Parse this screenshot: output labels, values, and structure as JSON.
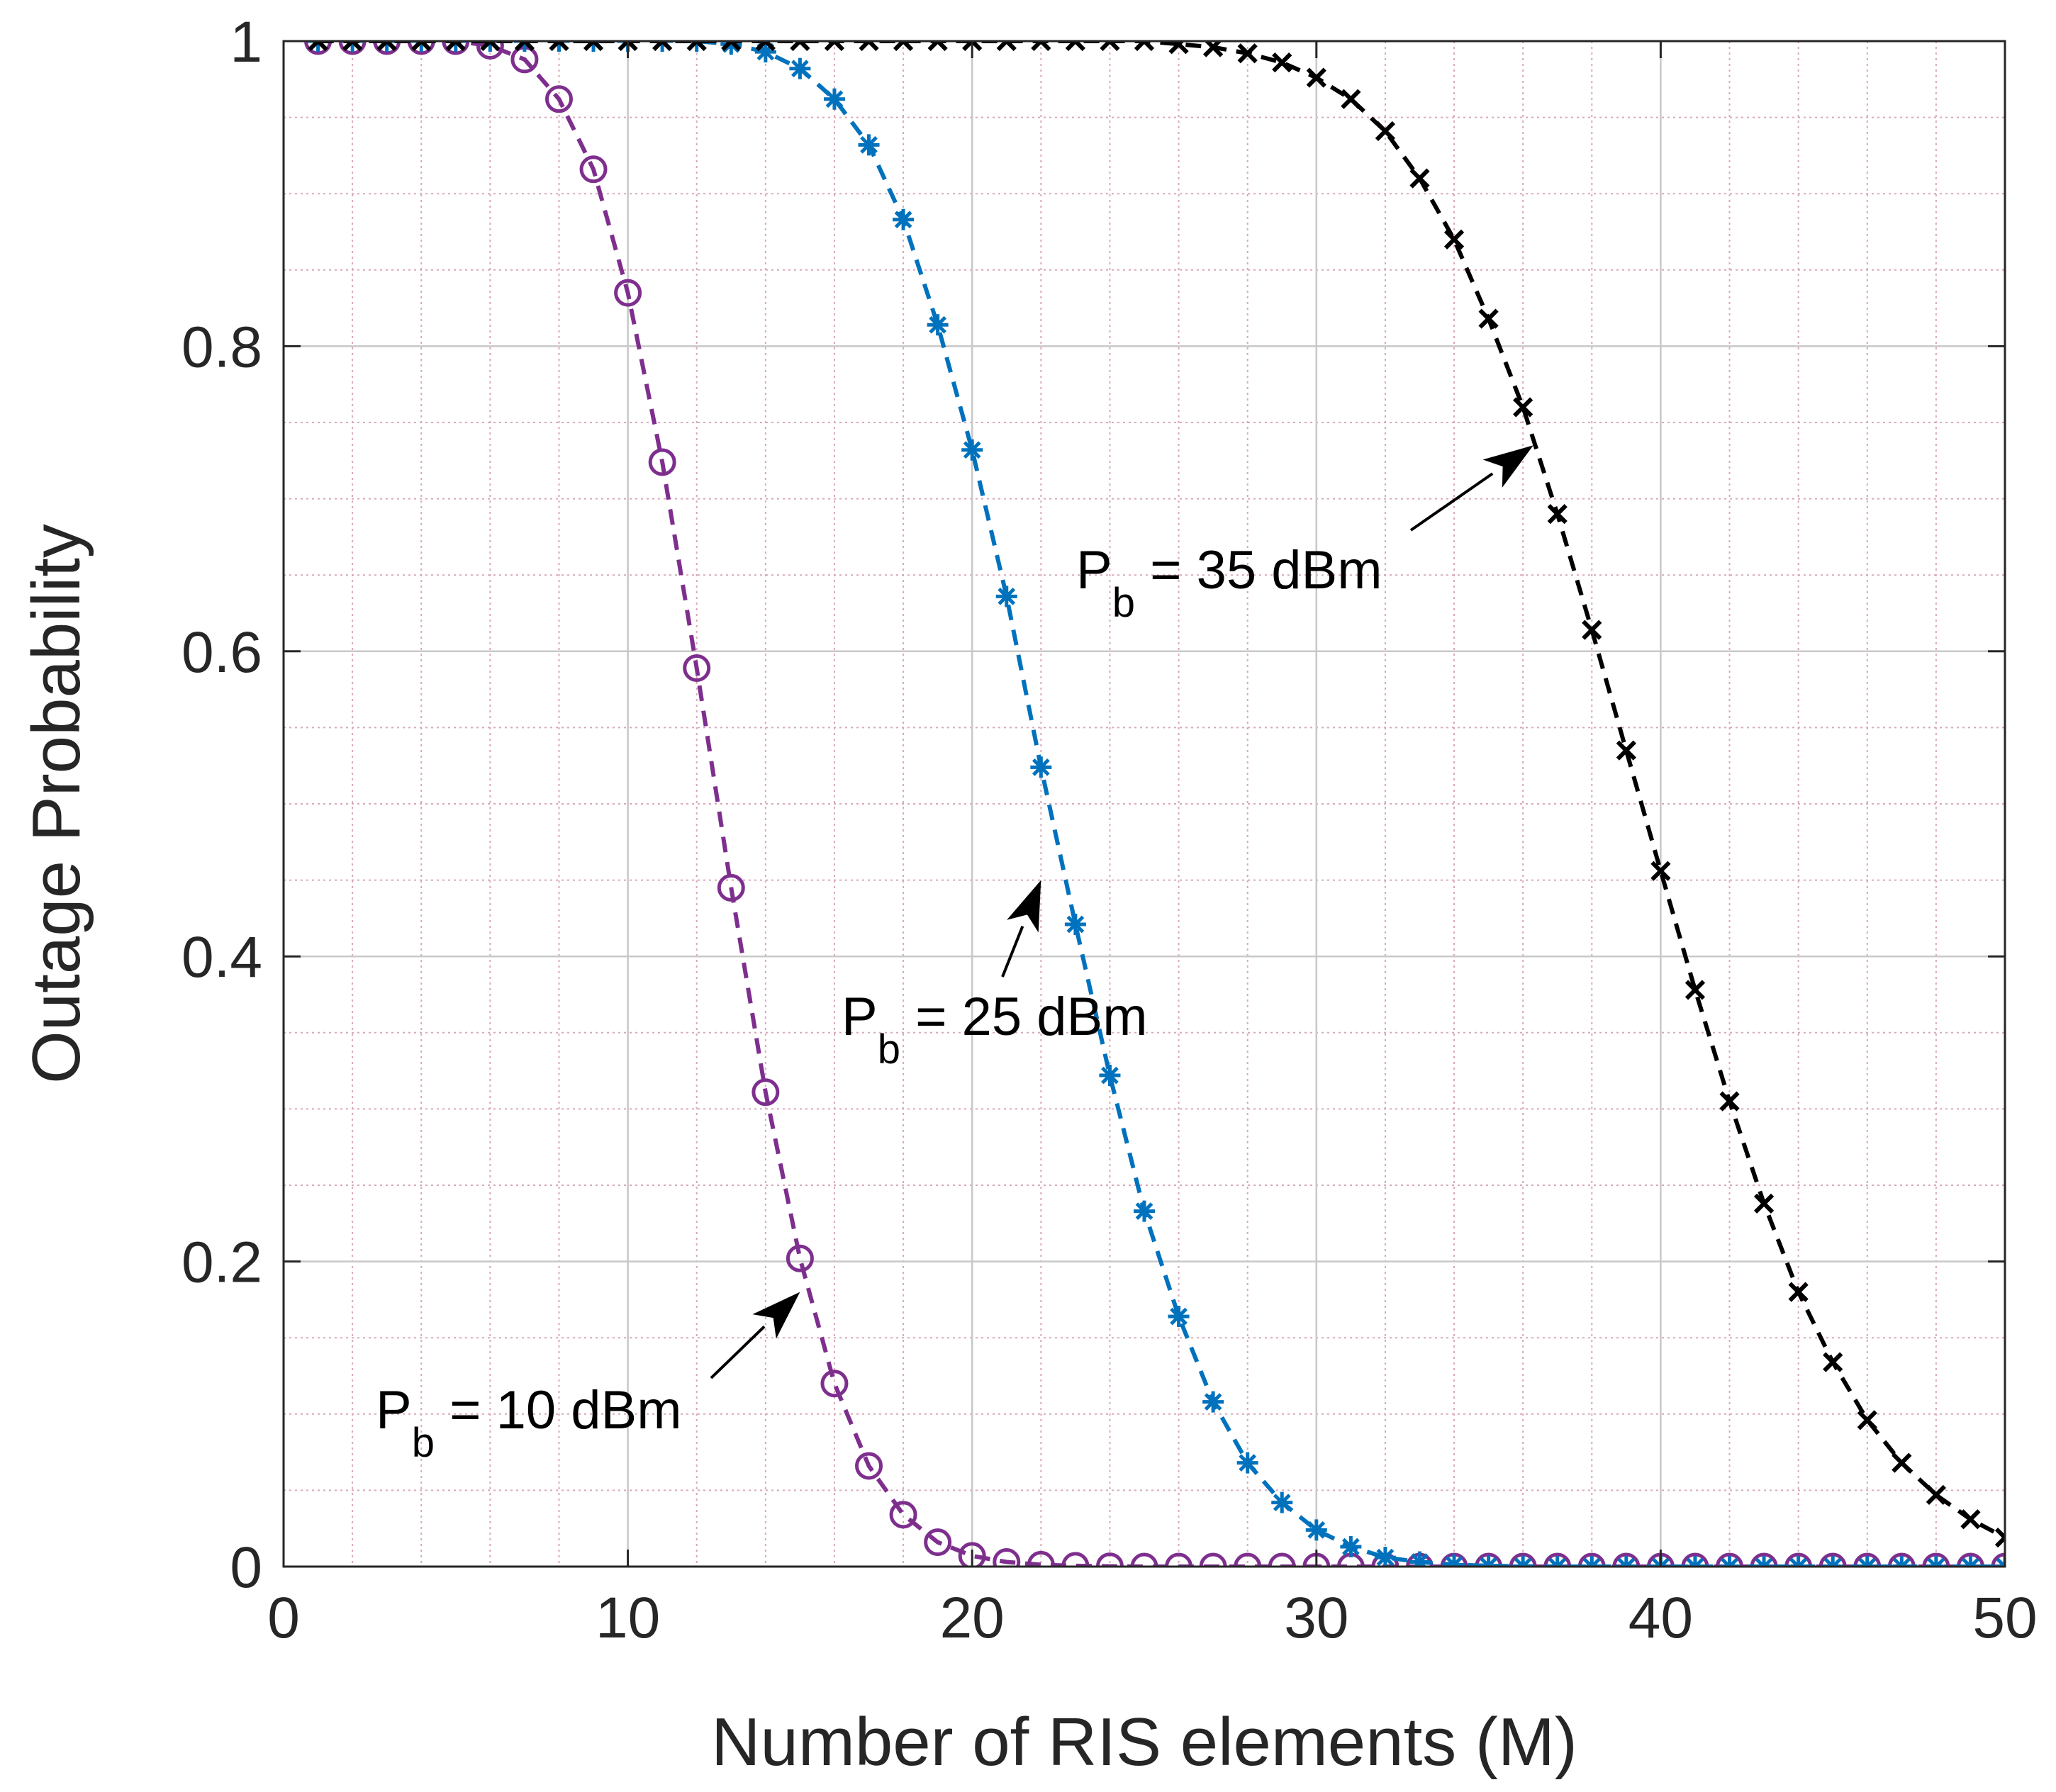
{
  "chart_data": {
    "type": "line",
    "title": "",
    "xlabel": "Number of RIS elements (M)",
    "ylabel": "Outage Probability",
    "xlim": [
      0,
      50
    ],
    "ylim": [
      0,
      1
    ],
    "xticks": [
      0,
      10,
      20,
      30,
      40,
      50
    ],
    "yticks": [
      0,
      0.2,
      0.4,
      0.6,
      0.8,
      1
    ],
    "xtick_labels": [
      "0",
      "10",
      "20",
      "30",
      "40",
      "50"
    ],
    "ytick_labels": [
      "0",
      "0.2",
      "0.4",
      "0.6",
      "0.8",
      "1"
    ],
    "grid": "major and minor",
    "x": [
      1,
      2,
      3,
      4,
      5,
      6,
      7,
      8,
      9,
      10,
      11,
      12,
      13,
      14,
      15,
      16,
      17,
      18,
      19,
      20,
      21,
      22,
      23,
      24,
      25,
      26,
      27,
      28,
      29,
      30,
      31,
      32,
      33,
      34,
      35,
      36,
      37,
      38,
      39,
      40,
      41,
      42,
      43,
      44,
      45,
      46,
      47,
      48,
      49,
      50
    ],
    "series": [
      {
        "name": "Pb = 10 dBm",
        "color": "#7E2F8E",
        "marker": "circle",
        "values": [
          1,
          1,
          1,
          1,
          1,
          0.997,
          0.988,
          0.962,
          0.916,
          0.835,
          0.724,
          0.589,
          0.445,
          0.311,
          0.202,
          0.12,
          0.066,
          0.034,
          0.016,
          0.007,
          0.003,
          0.0012,
          0.0005,
          0.0002,
          0,
          0,
          0,
          0,
          0,
          0,
          0,
          0,
          0,
          0,
          0,
          0,
          0,
          0,
          0,
          0,
          0,
          0,
          0,
          0,
          0,
          0,
          0,
          0,
          0,
          0
        ]
      },
      {
        "name": "Pb = 25 dBm",
        "color": "#0072BD",
        "marker": "asterisk",
        "values": [
          1,
          1,
          1,
          1,
          1,
          1,
          1,
          1,
          1,
          1,
          1,
          1,
          0.998,
          0.993,
          0.982,
          0.962,
          0.932,
          0.883,
          0.814,
          0.732,
          0.636,
          0.524,
          0.421,
          0.322,
          0.233,
          0.164,
          0.108,
          0.068,
          0.042,
          0.024,
          0.013,
          0.006,
          0.003,
          0.0012,
          0.0005,
          0.0002,
          0,
          0,
          0,
          0,
          0,
          0,
          0,
          0,
          0,
          0,
          0,
          0,
          0,
          0
        ]
      },
      {
        "name": "Pb = 35 dBm",
        "color": "#000000",
        "marker": "cross",
        "values": [
          1,
          1,
          1,
          1,
          1,
          1,
          1,
          1,
          1,
          1,
          1,
          1,
          1,
          1,
          1,
          1,
          1,
          1,
          1,
          1,
          1,
          1,
          1,
          1,
          1,
          0.998,
          0.996,
          0.992,
          0.986,
          0.976,
          0.962,
          0.941,
          0.91,
          0.87,
          0.818,
          0.76,
          0.69,
          0.614,
          0.535,
          0.456,
          0.378,
          0.305,
          0.238,
          0.18,
          0.134,
          0.096,
          0.068,
          0.047,
          0.031,
          0.019
        ]
      }
    ],
    "annotations": [
      {
        "main": "P",
        "sub": "b",
        "rest": " = 10 dBm",
        "arrow_to": [
          15,
          0.18
        ]
      },
      {
        "main": "P",
        "sub": "b",
        "rest": " = 25 dBm",
        "arrow_to": [
          22,
          0.45
        ]
      },
      {
        "main": "P",
        "sub": "b",
        "rest": " = 35 dBm",
        "arrow_to": [
          36.3,
          0.735
        ]
      }
    ]
  }
}
